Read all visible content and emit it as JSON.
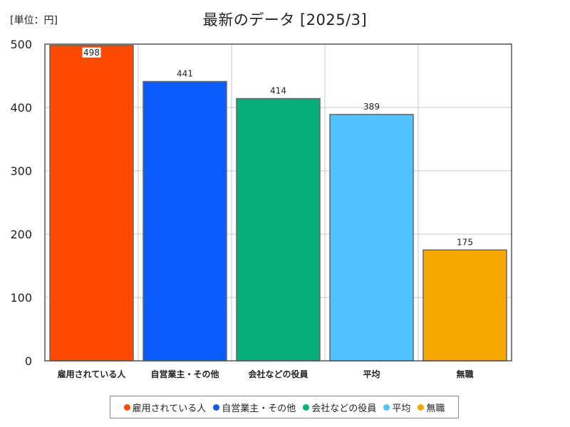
{
  "unit_label": "[単位：円]",
  "chart_data": {
    "type": "bar",
    "title": "最新のデータ [2025/3]",
    "xlabel": "",
    "ylabel": "",
    "ylim": [
      0,
      500
    ],
    "yticks": [
      0,
      100,
      200,
      300,
      400,
      500
    ],
    "grid": true,
    "legend_position": "bottom",
    "categories": [
      "雇用されている人",
      "自営業主・その他",
      "会社などの役員",
      "平均",
      "無職"
    ],
    "values": [
      498,
      441,
      414,
      389,
      175
    ],
    "colors": [
      "#ff4a00",
      "#0a5cff",
      "#06b07a",
      "#4fc3ff",
      "#f5a800"
    ]
  }
}
